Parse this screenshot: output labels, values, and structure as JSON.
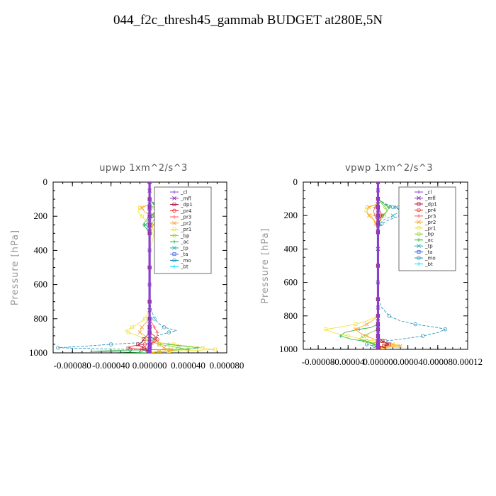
{
  "page": {
    "title": "044_f2c_thresh45_gammab  BUDGET at280E,5N"
  },
  "legend_entries": [
    "_cl",
    "_mfl",
    "_dp1",
    "_pr4",
    "_pr3",
    "_pr2",
    "_pr1",
    "_bp",
    "_ac",
    "_tp",
    "_ta",
    "_mo",
    "_bt"
  ],
  "series_colors": {
    "_cl": "#8a3fd1",
    "_mfl": "#7a1fa2",
    "_dp1": "#b0103a",
    "_pr4": "#e02020",
    "_pr3": "#ff5050",
    "_pr2": "#ffa020",
    "_pr1": "#f0e030",
    "_bp": "#80d020",
    "_ac": "#20b040",
    "_tp": "#20b0b0",
    "_ta": "#3050e0",
    "_mo": "#1a8cb8",
    "_bt": "#00d8ff"
  },
  "chart_data": [
    {
      "type": "line",
      "title": "upwp   1xm^2/s^3",
      "xlabel": "",
      "ylabel": "Pressure [hPa]",
      "xlim": [
        -0.0001,
        8e-05
      ],
      "ylim": [
        1000,
        0
      ],
      "xticks": [
        -8e-05,
        -4e-05,
        0.0,
        4e-05,
        8e-05
      ],
      "xtick_labels": [
        "-0.000080",
        "-0.000040",
        "0.000000",
        "0.000040",
        "0.000080"
      ],
      "yticks": [
        0,
        200,
        400,
        600,
        800,
        1000
      ],
      "ytick_labels": [
        "0",
        "200",
        "400",
        "600",
        "800",
        "1000"
      ],
      "legend": "top-right inside",
      "y": [
        0,
        50,
        100,
        130,
        150,
        175,
        200,
        225,
        250,
        275,
        300,
        400,
        500,
        600,
        700,
        750,
        800,
        830,
        850,
        870,
        880,
        900,
        920,
        940,
        950,
        960,
        970,
        975,
        980,
        985,
        990,
        1000
      ],
      "series": [
        {
          "name": "_cl",
          "values": [
            0,
            0,
            0,
            0,
            0,
            0,
            0,
            0,
            0,
            0,
            0,
            0,
            0,
            0,
            0,
            0,
            0,
            0,
            0,
            0,
            0,
            0,
            0,
            0,
            0,
            0,
            0,
            0,
            0,
            0,
            0,
            0
          ]
        },
        {
          "name": "_mfl",
          "values": [
            0,
            0,
            0,
            0,
            0,
            0,
            0,
            0,
            0,
            0,
            0,
            0,
            0,
            0,
            0,
            0,
            0,
            0,
            0,
            0,
            0,
            0,
            0,
            0,
            0,
            0,
            0,
            0,
            0,
            0,
            0,
            0
          ]
        },
        {
          "name": "_dp1",
          "values": [
            0,
            0,
            0,
            0,
            0,
            0,
            0,
            0,
            0,
            0,
            0,
            0,
            0,
            0,
            0,
            0,
            0,
            0,
            0,
            0,
            0,
            -3e-06,
            -6e-06,
            -8e-06,
            -1.2e-05,
            -1e-05,
            -6e-06,
            -4e-06,
            -3e-06,
            -2e-06,
            -1e-06,
            0
          ]
        },
        {
          "name": "_pr4",
          "values": [
            0,
            0,
            0,
            0,
            0,
            0,
            0,
            0,
            0,
            0,
            0,
            0,
            0,
            0,
            0,
            0,
            0,
            0,
            0,
            0,
            0,
            5e-06,
            8e-06,
            5e-06,
            -5e-06,
            -1.8e-05,
            -2.2e-05,
            -1.5e-05,
            -8e-06,
            -3e-06,
            -1e-06,
            0
          ]
        },
        {
          "name": "_pr3",
          "values": [
            0,
            0,
            0,
            0,
            0,
            0,
            0,
            0,
            0,
            0,
            0,
            0,
            0,
            0,
            0,
            0,
            0,
            3e-06,
            5e-06,
            7e-06,
            8e-06,
            8e-06,
            5e-06,
            3e-06,
            2e-06,
            2e-06,
            1e-06,
            1e-06,
            0,
            0,
            0,
            0
          ]
        },
        {
          "name": "_pr2",
          "values": [
            0,
            0,
            0,
            0,
            -8e-06,
            -5e-06,
            5e-06,
            6e-06,
            4e-06,
            2e-06,
            0,
            0,
            0,
            0,
            0,
            0,
            0,
            -5e-06,
            -8e-06,
            -1e-05,
            -1e-05,
            -5e-06,
            0,
            5e-06,
            1e-05,
            1.2e-05,
            1.5e-05,
            1.8e-05,
            2.2e-05,
            2.5e-05,
            1e-05,
            0
          ]
        },
        {
          "name": "_pr1",
          "values": [
            0,
            0,
            0,
            0,
            -1e-05,
            -1.2e-05,
            -8e-06,
            -4e-06,
            0,
            4e-06,
            5e-06,
            0,
            0,
            0,
            0,
            0,
            -5e-06,
            -1.2e-05,
            -1.8e-05,
            -2.5e-05,
            -2.2e-05,
            -1.2e-05,
            -5e-06,
            1e-05,
            2.5e-05,
            4e-05,
            5.5e-05,
            6e-05,
            6.8e-05,
            5e-05,
            2e-05,
            0
          ]
        },
        {
          "name": "_bp",
          "values": [
            0,
            0,
            0,
            0,
            5e-06,
            8e-06,
            6e-06,
            4e-06,
            2e-06,
            0,
            0,
            0,
            0,
            0,
            0,
            0,
            0,
            0,
            0,
            0,
            0,
            0,
            0,
            5e-06,
            1e-05,
            2e-05,
            3e-05,
            3.5e-05,
            4e-05,
            2.5e-05,
            1e-05,
            0
          ]
        },
        {
          "name": "_ac",
          "values": [
            0,
            0,
            0,
            5e-06,
            8e-06,
            6e-06,
            0,
            -4e-06,
            -6e-06,
            -3e-06,
            0,
            0,
            0,
            0,
            0,
            0,
            0,
            0,
            0,
            0,
            0,
            0,
            5e-06,
            1e-05,
            2e-05,
            3.5e-05,
            5e-05,
            4.5e-05,
            2e-05,
            -3e-05,
            -6e-05,
            0
          ]
        },
        {
          "name": "_tp",
          "values": [
            0,
            0,
            0,
            6e-06,
            1e-05,
            9e-06,
            4e-06,
            -2e-06,
            -4e-06,
            -2e-06,
            0,
            0,
            0,
            0,
            0,
            0,
            0,
            0,
            0,
            0,
            0,
            0,
            0,
            0,
            0,
            0,
            0,
            0,
            0,
            0,
            0,
            0
          ]
        },
        {
          "name": "_ta",
          "values": [
            0,
            0,
            0,
            0,
            0,
            0,
            0,
            0,
            0,
            0,
            0,
            0,
            0,
            0,
            0,
            0,
            0,
            0,
            0,
            0,
            0,
            0,
            0,
            0,
            0,
            0,
            0,
            0,
            0,
            0,
            0,
            0
          ]
        },
        {
          "name": "_mo",
          "values": [
            0,
            0,
            0,
            4e-06,
            8e-06,
            6e-06,
            2e-06,
            0,
            0,
            0,
            0,
            0,
            0,
            0,
            0,
            2e-06,
            5e-06,
            1e-05,
            1.5e-05,
            2.8e-05,
            2e-05,
            8e-06,
            2e-06,
            -1e-05,
            -4e-05,
            -6.5e-05,
            -9.5e-05,
            -6e-05,
            -2e-05,
            -5e-06,
            -2e-06,
            0
          ]
        },
        {
          "name": "_bt",
          "values": [
            0,
            0,
            0,
            0,
            0,
            0,
            0,
            0,
            0,
            0,
            0,
            0,
            0,
            0,
            0,
            0,
            0,
            0,
            0,
            0,
            0,
            0,
            0,
            0,
            0,
            0,
            0,
            0,
            0,
            0,
            0,
            0
          ]
        }
      ]
    },
    {
      "type": "line",
      "title": "vpwp   1xm^2/s^3",
      "xlabel": "",
      "ylabel": "Pressure [hPa]",
      "xlim": [
        -0.0001,
        0.00012
      ],
      "ylim": [
        1000,
        0
      ],
      "xticks": [
        -8e-05,
        -4e-05,
        0.0,
        4e-05,
        8e-05,
        0.00012
      ],
      "xtick_labels": [
        "-0.00008",
        "-0.00004",
        "0.00000",
        "0.00004",
        "0.00008",
        "0.00012"
      ],
      "yticks": [
        0,
        200,
        400,
        600,
        800,
        1000
      ],
      "ytick_labels": [
        "0",
        "200",
        "400",
        "600",
        "800",
        "1000"
      ],
      "legend": "top-right inside",
      "y": [
        0,
        50,
        100,
        130,
        150,
        175,
        200,
        225,
        250,
        275,
        300,
        400,
        500,
        600,
        700,
        750,
        800,
        830,
        850,
        870,
        880,
        900,
        920,
        940,
        950,
        960,
        970,
        975,
        980,
        985,
        990,
        1000
      ],
      "series": [
        {
          "name": "_cl",
          "values": [
            0,
            0,
            0,
            0,
            0,
            0,
            0,
            0,
            0,
            0,
            0,
            0,
            0,
            0,
            0,
            0,
            0,
            0,
            0,
            0,
            0,
            0,
            0,
            0,
            0,
            0,
            0,
            0,
            0,
            0,
            0,
            0
          ]
        },
        {
          "name": "_mfl",
          "values": [
            0,
            0,
            0,
            0,
            0,
            0,
            0,
            0,
            0,
            0,
            0,
            0,
            0,
            0,
            0,
            0,
            0,
            0,
            0,
            0,
            0,
            0,
            0,
            0,
            0,
            0,
            0,
            0,
            0,
            0,
            0,
            0
          ]
        },
        {
          "name": "_dp1",
          "values": [
            0,
            0,
            0,
            0,
            0,
            0,
            0,
            0,
            0,
            0,
            0,
            0,
            0,
            0,
            0,
            0,
            0,
            0,
            0,
            0,
            0,
            0,
            0,
            3e-06,
            6e-06,
            1e-05,
            1.5e-05,
            1.2e-05,
            8e-06,
            4e-06,
            2e-06,
            0
          ]
        },
        {
          "name": "_pr4",
          "values": [
            0,
            0,
            0,
            0,
            0,
            3e-06,
            5e-06,
            3e-06,
            0,
            0,
            0,
            0,
            0,
            0,
            0,
            0,
            0,
            0,
            0,
            0,
            0,
            0,
            0,
            3e-06,
            6e-06,
            1e-05,
            1.2e-05,
            1e-05,
            8e-06,
            4e-06,
            2e-06,
            0
          ]
        },
        {
          "name": "_pr3",
          "values": [
            0,
            0,
            0,
            0,
            -4e-06,
            -6e-06,
            -4e-06,
            -2e-06,
            0,
            0,
            0,
            0,
            0,
            0,
            0,
            0,
            0,
            0,
            0,
            0,
            0,
            0,
            0,
            0,
            0,
            0,
            0,
            0,
            0,
            0,
            0,
            0
          ]
        },
        {
          "name": "_pr2",
          "values": [
            0,
            0,
            0,
            0,
            -1.2e-05,
            -1.5e-05,
            -1.2e-05,
            -6e-06,
            -3e-06,
            0,
            0,
            0,
            0,
            0,
            0,
            0,
            0,
            -8e-06,
            -1.5e-05,
            -2.5e-05,
            -3e-05,
            -2.5e-05,
            -1.5e-05,
            -5e-06,
            0,
            1e-05,
            2e-05,
            2.5e-05,
            3e-05,
            2e-05,
            1e-05,
            0
          ]
        },
        {
          "name": "_pr1",
          "values": [
            0,
            0,
            0,
            0,
            -1.5e-05,
            -1.8e-05,
            -1e-05,
            -5e-06,
            -2e-06,
            0,
            0,
            0,
            0,
            0,
            0,
            0,
            0,
            -1.5e-05,
            -3e-05,
            -5.5e-05,
            -7e-05,
            -6e-05,
            -4e-05,
            -2e-05,
            -5e-06,
            5e-06,
            1.5e-05,
            2e-05,
            2.5e-05,
            1.5e-05,
            5e-06,
            0
          ]
        },
        {
          "name": "_bp",
          "values": [
            0,
            0,
            0,
            5e-06,
            1e-05,
            1.2e-05,
            8e-06,
            4e-06,
            0,
            0,
            0,
            0,
            0,
            0,
            0,
            0,
            0,
            0,
            0,
            0,
            0,
            -1e-05,
            -2e-05,
            -2.5e-05,
            -1.5e-05,
            -8e-06,
            -4e-06,
            -2e-06,
            0,
            0,
            0,
            0
          ]
        },
        {
          "name": "_ac",
          "values": [
            0,
            0,
            0,
            8e-06,
            1.5e-05,
            1.2e-05,
            6e-06,
            0,
            0,
            0,
            0,
            0,
            0,
            0,
            0,
            0,
            0,
            0,
            0,
            -1e-05,
            -2.5e-05,
            -4.5e-05,
            -5e-05,
            -3.5e-05,
            -2e-05,
            -1e-05,
            -5e-06,
            -2e-06,
            0,
            0,
            0,
            0
          ]
        },
        {
          "name": "_tp",
          "values": [
            0,
            0,
            0,
            1e-05,
            2.5e-05,
            3e-05,
            2e-05,
            8e-06,
            2e-06,
            0,
            0,
            0,
            0,
            0,
            0,
            0,
            0,
            0,
            0,
            0,
            0,
            0,
            0,
            0,
            0,
            0,
            0,
            0,
            0,
            0,
            0,
            0
          ]
        },
        {
          "name": "_ta",
          "values": [
            0,
            0,
            0,
            0,
            0,
            0,
            0,
            0,
            0,
            0,
            0,
            0,
            0,
            0,
            0,
            0,
            0,
            0,
            0,
            0,
            0,
            0,
            0,
            0,
            0,
            0,
            0,
            0,
            0,
            0,
            0,
            0
          ]
        },
        {
          "name": "_mo",
          "values": [
            0,
            0,
            0,
            8e-06,
            2e-05,
            3.5e-05,
            3e-05,
            1.5e-05,
            5e-06,
            0,
            0,
            0,
            0,
            0,
            0,
            5e-06,
            1.5e-05,
            3e-05,
            5e-05,
            8e-05,
            9e-05,
            8e-05,
            6e-05,
            3e-05,
            1e-05,
            -5e-06,
            -1.5e-05,
            -1e-05,
            -5e-06,
            -2e-06,
            0,
            0
          ]
        },
        {
          "name": "_bt",
          "values": [
            0,
            0,
            0,
            0,
            0,
            0,
            0,
            0,
            0,
            0,
            0,
            0,
            0,
            0,
            0,
            0,
            0,
            0,
            0,
            0,
            0,
            0,
            0,
            0,
            0,
            0,
            0,
            0,
            0,
            0,
            0,
            0
          ]
        }
      ]
    }
  ]
}
